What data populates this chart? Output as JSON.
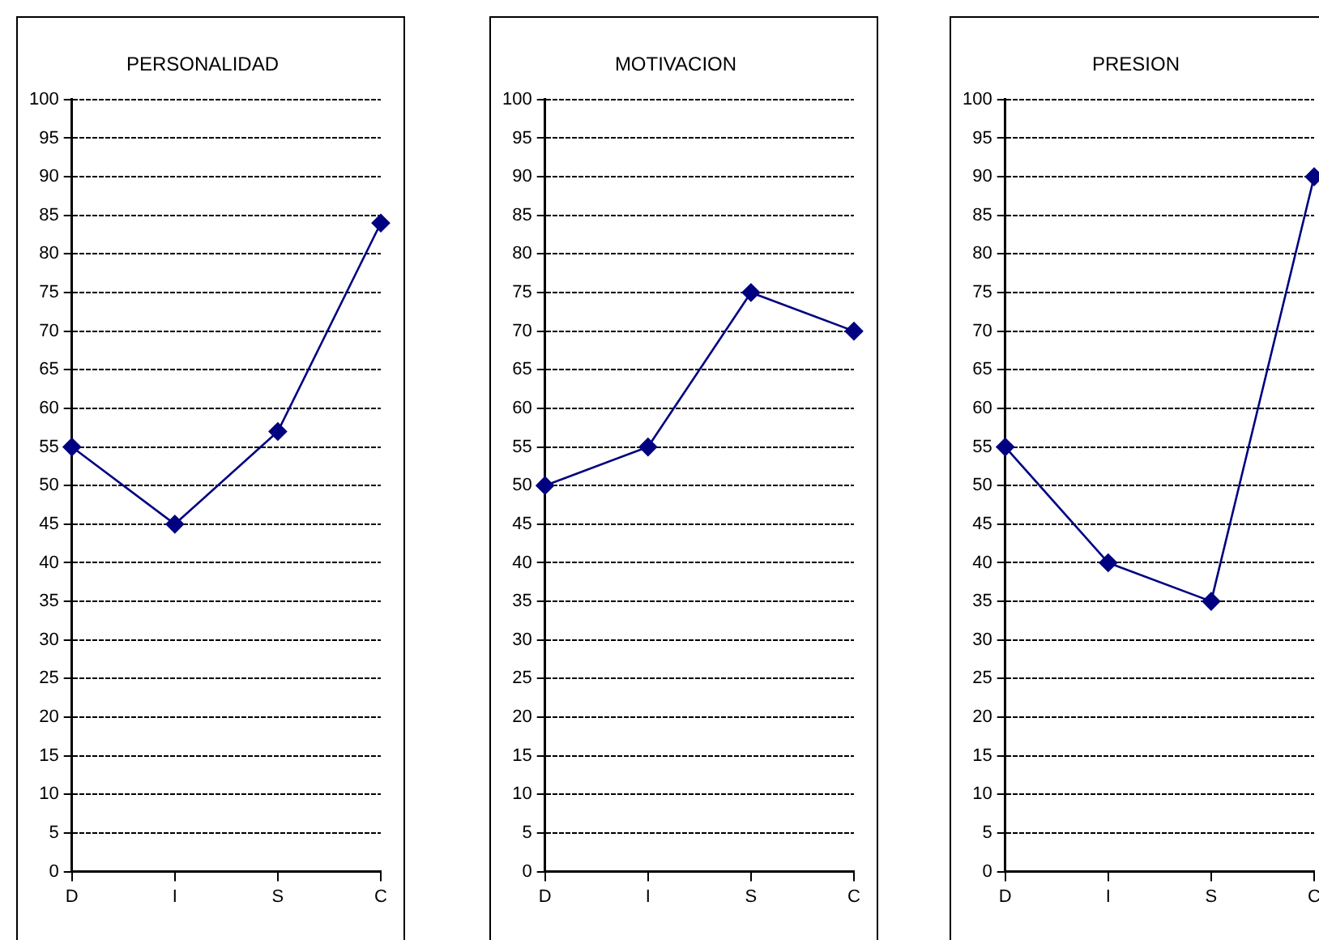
{
  "chart_data": [
    {
      "type": "line",
      "title": "PERSONALIDAD",
      "categories": [
        "D",
        "I",
        "S",
        "C"
      ],
      "series": [
        {
          "color": "#000080",
          "values": [
            55,
            45,
            57,
            84
          ]
        }
      ],
      "ylim": [
        0,
        100
      ],
      "yticks": [
        0,
        5,
        10,
        15,
        20,
        25,
        30,
        35,
        40,
        45,
        50,
        55,
        60,
        65,
        70,
        75,
        80,
        85,
        90,
        95,
        100
      ],
      "grid": "y",
      "marker": "diamond",
      "legend": false
    },
    {
      "type": "line",
      "title": "MOTIVACION",
      "categories": [
        "D",
        "I",
        "S",
        "C"
      ],
      "series": [
        {
          "color": "#000080",
          "values": [
            50,
            55,
            75,
            70
          ]
        }
      ],
      "ylim": [
        0,
        100
      ],
      "yticks": [
        0,
        5,
        10,
        15,
        20,
        25,
        30,
        35,
        40,
        45,
        50,
        55,
        60,
        65,
        70,
        75,
        80,
        85,
        90,
        95,
        100
      ],
      "grid": "y",
      "marker": "diamond",
      "legend": false
    },
    {
      "type": "line",
      "title": "PRESION",
      "categories": [
        "D",
        "I",
        "S",
        "C"
      ],
      "series": [
        {
          "color": "#000080",
          "values": [
            55,
            40,
            35,
            90
          ]
        }
      ],
      "ylim": [
        0,
        100
      ],
      "yticks": [
        0,
        5,
        10,
        15,
        20,
        25,
        30,
        35,
        40,
        45,
        50,
        55,
        60,
        65,
        70,
        75,
        80,
        85,
        90,
        95,
        100
      ],
      "grid": "y",
      "marker": "diamond",
      "legend": false
    }
  ]
}
